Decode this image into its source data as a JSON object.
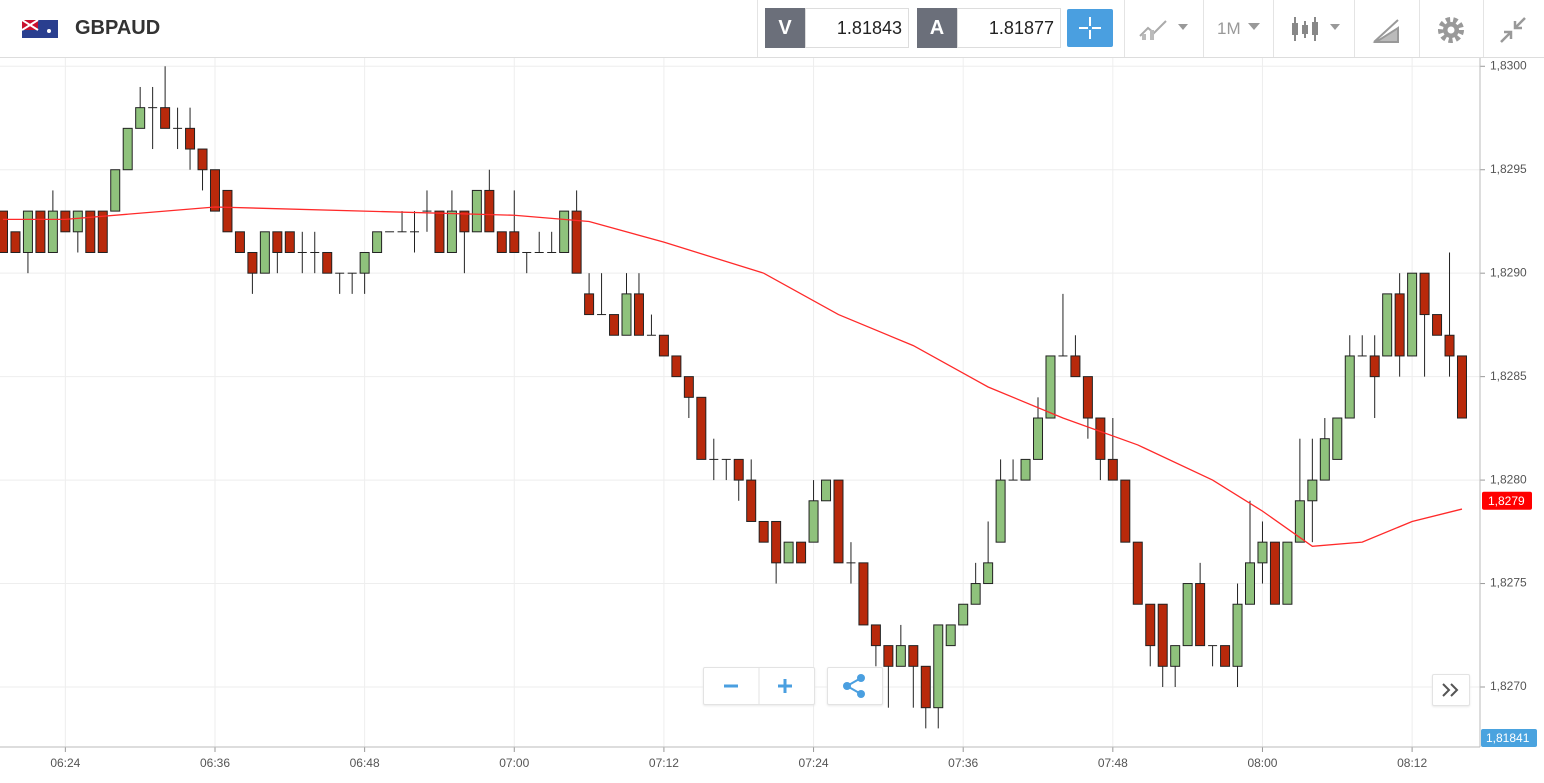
{
  "toolbar": {
    "symbol": "GBPAUD",
    "sell_label": "V",
    "sell_price": "1.81843",
    "buy_label": "A",
    "buy_price": "1.81877",
    "timeframe": "1M"
  },
  "chart_data": {
    "type": "candlestick",
    "categories": [
      null,
      null,
      null,
      null,
      null,
      "06:24",
      null,
      null,
      null,
      null,
      null,
      null,
      null,
      null,
      null,
      null,
      null,
      "06:36",
      null,
      null,
      null,
      null,
      null,
      null,
      null,
      null,
      null,
      null,
      null,
      "06:48",
      null,
      null,
      null,
      null,
      null,
      null,
      null,
      null,
      null,
      null,
      null,
      "07:00",
      null,
      null,
      null,
      null,
      null,
      null,
      null,
      null,
      null,
      null,
      null,
      "07:12",
      null,
      null,
      null,
      null,
      null,
      null,
      null,
      null,
      null,
      null,
      null,
      "07:24",
      null,
      null,
      null,
      null,
      null,
      null,
      null,
      null,
      null,
      null,
      null,
      "07:36",
      null,
      null,
      null,
      null,
      null,
      null,
      null,
      null,
      null,
      null,
      null,
      "07:48",
      null,
      null,
      null,
      null,
      null,
      null,
      null,
      null,
      null,
      null,
      null,
      "08:00",
      null,
      null,
      null,
      null,
      null,
      null,
      null,
      null,
      null,
      null,
      null,
      "08:12",
      null,
      null,
      null,
      null
    ],
    "candles": [
      {
        "o": 1.8293,
        "h": 1.8293,
        "l": 1.8291,
        "c": 1.8291
      },
      {
        "o": 1.8292,
        "h": 1.8292,
        "l": 1.8291,
        "c": 1.8291
      },
      {
        "o": 1.8291,
        "h": 1.8293,
        "l": 1.829,
        "c": 1.8293
      },
      {
        "o": 1.8293,
        "h": 1.8293,
        "l": 1.8291,
        "c": 1.8291
      },
      {
        "o": 1.8291,
        "h": 1.8294,
        "l": 1.8291,
        "c": 1.8293
      },
      {
        "o": 1.8293,
        "h": 1.8293,
        "l": 1.8292,
        "c": 1.8292
      },
      {
        "o": 1.8292,
        "h": 1.8293,
        "l": 1.8291,
        "c": 1.8293
      },
      {
        "o": 1.8293,
        "h": 1.8293,
        "l": 1.8291,
        "c": 1.8291
      },
      {
        "o": 1.8293,
        "h": 1.8293,
        "l": 1.8291,
        "c": 1.8291
      },
      {
        "o": 1.8293,
        "h": 1.8295,
        "l": 1.8293,
        "c": 1.8295
      },
      {
        "o": 1.8295,
        "h": 1.8297,
        "l": 1.8295,
        "c": 1.8297
      },
      {
        "o": 1.8297,
        "h": 1.8299,
        "l": 1.8297,
        "c": 1.8298
      },
      {
        "o": 1.8298,
        "h": 1.8299,
        "l": 1.8296,
        "c": 1.8298
      },
      {
        "o": 1.8298,
        "h": 1.83,
        "l": 1.8297,
        "c": 1.8297
      },
      {
        "o": 1.8297,
        "h": 1.8298,
        "l": 1.8296,
        "c": 1.8297
      },
      {
        "o": 1.8297,
        "h": 1.8298,
        "l": 1.8295,
        "c": 1.8296
      },
      {
        "o": 1.8296,
        "h": 1.8296,
        "l": 1.8294,
        "c": 1.8295
      },
      {
        "o": 1.8295,
        "h": 1.8295,
        "l": 1.8293,
        "c": 1.8293
      },
      {
        "o": 1.8294,
        "h": 1.8294,
        "l": 1.8292,
        "c": 1.8292
      },
      {
        "o": 1.8292,
        "h": 1.8292,
        "l": 1.8291,
        "c": 1.8291
      },
      {
        "o": 1.8291,
        "h": 1.8291,
        "l": 1.8289,
        "c": 1.829
      },
      {
        "o": 1.829,
        "h": 1.8292,
        "l": 1.829,
        "c": 1.8292
      },
      {
        "o": 1.8292,
        "h": 1.8292,
        "l": 1.829,
        "c": 1.8291
      },
      {
        "o": 1.8292,
        "h": 1.8292,
        "l": 1.8291,
        "c": 1.8291
      },
      {
        "o": 1.8291,
        "h": 1.8292,
        "l": 1.829,
        "c": 1.8291
      },
      {
        "o": 1.8291,
        "h": 1.8292,
        "l": 1.829,
        "c": 1.8291
      },
      {
        "o": 1.8291,
        "h": 1.8291,
        "l": 1.829,
        "c": 1.829
      },
      {
        "o": 1.829,
        "h": 1.829,
        "l": 1.8289,
        "c": 1.829
      },
      {
        "o": 1.829,
        "h": 1.829,
        "l": 1.8289,
        "c": 1.829
      },
      {
        "o": 1.829,
        "h": 1.8291,
        "l": 1.8289,
        "c": 1.8291
      },
      {
        "o": 1.8291,
        "h": 1.8292,
        "l": 1.8291,
        "c": 1.8292
      },
      {
        "o": 1.8292,
        "h": 1.8292,
        "l": 1.8292,
        "c": 1.8292
      },
      {
        "o": 1.8292,
        "h": 1.8293,
        "l": 1.8292,
        "c": 1.8292
      },
      {
        "o": 1.8292,
        "h": 1.8293,
        "l": 1.8291,
        "c": 1.8292
      },
      {
        "o": 1.8293,
        "h": 1.8294,
        "l": 1.8292,
        "c": 1.8293
      },
      {
        "o": 1.8293,
        "h": 1.8293,
        "l": 1.8291,
        "c": 1.8291
      },
      {
        "o": 1.8291,
        "h": 1.8294,
        "l": 1.8291,
        "c": 1.8293
      },
      {
        "o": 1.8293,
        "h": 1.8293,
        "l": 1.829,
        "c": 1.8292
      },
      {
        "o": 1.8292,
        "h": 1.8294,
        "l": 1.8292,
        "c": 1.8294
      },
      {
        "o": 1.8294,
        "h": 1.8295,
        "l": 1.8292,
        "c": 1.8292
      },
      {
        "o": 1.8292,
        "h": 1.8292,
        "l": 1.8291,
        "c": 1.8291
      },
      {
        "o": 1.8292,
        "h": 1.8294,
        "l": 1.8291,
        "c": 1.8291
      },
      {
        "o": 1.8291,
        "h": 1.8291,
        "l": 1.829,
        "c": 1.8291
      },
      {
        "o": 1.8291,
        "h": 1.8292,
        "l": 1.8291,
        "c": 1.8291
      },
      {
        "o": 1.8291,
        "h": 1.8292,
        "l": 1.8291,
        "c": 1.8291
      },
      {
        "o": 1.8291,
        "h": 1.8293,
        "l": 1.8291,
        "c": 1.8293
      },
      {
        "o": 1.8293,
        "h": 1.8294,
        "l": 1.829,
        "c": 1.829
      },
      {
        "o": 1.8289,
        "h": 1.829,
        "l": 1.8288,
        "c": 1.8288
      },
      {
        "o": 1.8288,
        "h": 1.829,
        "l": 1.8288,
        "c": 1.8288
      },
      {
        "o": 1.8288,
        "h": 1.8288,
        "l": 1.8287,
        "c": 1.8287
      },
      {
        "o": 1.8287,
        "h": 1.829,
        "l": 1.8287,
        "c": 1.8289
      },
      {
        "o": 1.8289,
        "h": 1.829,
        "l": 1.8287,
        "c": 1.8287
      },
      {
        "o": 1.8287,
        "h": 1.8288,
        "l": 1.8287,
        "c": 1.8287
      },
      {
        "o": 1.8287,
        "h": 1.8287,
        "l": 1.8286,
        "c": 1.8286
      },
      {
        "o": 1.8286,
        "h": 1.8286,
        "l": 1.8285,
        "c": 1.8285
      },
      {
        "o": 1.8285,
        "h": 1.8285,
        "l": 1.8283,
        "c": 1.8284
      },
      {
        "o": 1.8284,
        "h": 1.8284,
        "l": 1.8281,
        "c": 1.8281
      },
      {
        "o": 1.8281,
        "h": 1.8282,
        "l": 1.828,
        "c": 1.8281
      },
      {
        "o": 1.8281,
        "h": 1.8281,
        "l": 1.828,
        "c": 1.8281
      },
      {
        "o": 1.8281,
        "h": 1.8281,
        "l": 1.8279,
        "c": 1.828
      },
      {
        "o": 1.828,
        "h": 1.8281,
        "l": 1.8278,
        "c": 1.8278
      },
      {
        "o": 1.8278,
        "h": 1.8278,
        "l": 1.8277,
        "c": 1.8277
      },
      {
        "o": 1.8278,
        "h": 1.8278,
        "l": 1.8275,
        "c": 1.8276
      },
      {
        "o": 1.8276,
        "h": 1.8277,
        "l": 1.8276,
        "c": 1.8277
      },
      {
        "o": 1.8277,
        "h": 1.8277,
        "l": 1.8276,
        "c": 1.8276
      },
      {
        "o": 1.8277,
        "h": 1.828,
        "l": 1.8277,
        "c": 1.8279
      },
      {
        "o": 1.8279,
        "h": 1.828,
        "l": 1.8279,
        "c": 1.828
      },
      {
        "o": 1.828,
        "h": 1.828,
        "l": 1.8276,
        "c": 1.8276
      },
      {
        "o": 1.8276,
        "h": 1.8277,
        "l": 1.8275,
        "c": 1.8276
      },
      {
        "o": 1.8276,
        "h": 1.8276,
        "l": 1.8273,
        "c": 1.8273
      },
      {
        "o": 1.8273,
        "h": 1.8273,
        "l": 1.8271,
        "c": 1.8272
      },
      {
        "o": 1.8272,
        "h": 1.8272,
        "l": 1.8269,
        "c": 1.8271
      },
      {
        "o": 1.8271,
        "h": 1.8273,
        "l": 1.8271,
        "c": 1.8272
      },
      {
        "o": 1.8272,
        "h": 1.8272,
        "l": 1.8269,
        "c": 1.8271
      },
      {
        "o": 1.8271,
        "h": 1.8271,
        "l": 1.8268,
        "c": 1.8269
      },
      {
        "o": 1.8269,
        "h": 1.8273,
        "l": 1.8268,
        "c": 1.8273
      },
      {
        "o": 1.8272,
        "h": 1.8273,
        "l": 1.8272,
        "c": 1.8273
      },
      {
        "o": 1.8273,
        "h": 1.8274,
        "l": 1.8273,
        "c": 1.8274
      },
      {
        "o": 1.8274,
        "h": 1.8276,
        "l": 1.8274,
        "c": 1.8275
      },
      {
        "o": 1.8275,
        "h": 1.8278,
        "l": 1.8275,
        "c": 1.8276
      },
      {
        "o": 1.8277,
        "h": 1.8281,
        "l": 1.8277,
        "c": 1.828
      },
      {
        "o": 1.828,
        "h": 1.8281,
        "l": 1.828,
        "c": 1.828
      },
      {
        "o": 1.828,
        "h": 1.8281,
        "l": 1.828,
        "c": 1.8281
      },
      {
        "o": 1.8281,
        "h": 1.8284,
        "l": 1.8281,
        "c": 1.8283
      },
      {
        "o": 1.8283,
        "h": 1.8286,
        "l": 1.8283,
        "c": 1.8286
      },
      {
        "o": 1.8286,
        "h": 1.8289,
        "l": 1.8286,
        "c": 1.8286
      },
      {
        "o": 1.8286,
        "h": 1.8287,
        "l": 1.8285,
        "c": 1.8285
      },
      {
        "o": 1.8285,
        "h": 1.8285,
        "l": 1.8282,
        "c": 1.8283
      },
      {
        "o": 1.8283,
        "h": 1.8283,
        "l": 1.828,
        "c": 1.8281
      },
      {
        "o": 1.8281,
        "h": 1.8283,
        "l": 1.828,
        "c": 1.828
      },
      {
        "o": 1.828,
        "h": 1.828,
        "l": 1.8277,
        "c": 1.8277
      },
      {
        "o": 1.8277,
        "h": 1.8277,
        "l": 1.8274,
        "c": 1.8274
      },
      {
        "o": 1.8274,
        "h": 1.8274,
        "l": 1.8271,
        "c": 1.8272
      },
      {
        "o": 1.8274,
        "h": 1.8274,
        "l": 1.827,
        "c": 1.8271
      },
      {
        "o": 1.8271,
        "h": 1.8272,
        "l": 1.827,
        "c": 1.8272
      },
      {
        "o": 1.8272,
        "h": 1.8275,
        "l": 1.8272,
        "c": 1.8275
      },
      {
        "o": 1.8275,
        "h": 1.8276,
        "l": 1.8272,
        "c": 1.8272
      },
      {
        "o": 1.8272,
        "h": 1.8272,
        "l": 1.8271,
        "c": 1.8272
      },
      {
        "o": 1.8272,
        "h": 1.8272,
        "l": 1.8271,
        "c": 1.8271
      },
      {
        "o": 1.8271,
        "h": 1.8275,
        "l": 1.827,
        "c": 1.8274
      },
      {
        "o": 1.8274,
        "h": 1.8279,
        "l": 1.8274,
        "c": 1.8276
      },
      {
        "o": 1.8276,
        "h": 1.8278,
        "l": 1.8275,
        "c": 1.8277
      },
      {
        "o": 1.8277,
        "h": 1.8277,
        "l": 1.8274,
        "c": 1.8274
      },
      {
        "o": 1.8274,
        "h": 1.8277,
        "l": 1.8274,
        "c": 1.8277
      },
      {
        "o": 1.8277,
        "h": 1.8282,
        "l": 1.8277,
        "c": 1.8279
      },
      {
        "o": 1.8279,
        "h": 1.8282,
        "l": 1.8277,
        "c": 1.828
      },
      {
        "o": 1.828,
        "h": 1.8283,
        "l": 1.828,
        "c": 1.8282
      },
      {
        "o": 1.8281,
        "h": 1.8283,
        "l": 1.8281,
        "c": 1.8283
      },
      {
        "o": 1.8283,
        "h": 1.8287,
        "l": 1.8283,
        "c": 1.8286
      },
      {
        "o": 1.8286,
        "h": 1.8287,
        "l": 1.8286,
        "c": 1.8286
      },
      {
        "o": 1.8286,
        "h": 1.8287,
        "l": 1.8283,
        "c": 1.8285
      },
      {
        "o": 1.8286,
        "h": 1.8289,
        "l": 1.8286,
        "c": 1.8289
      },
      {
        "o": 1.8289,
        "h": 1.829,
        "l": 1.8285,
        "c": 1.8286
      },
      {
        "o": 1.8286,
        "h": 1.829,
        "l": 1.8286,
        "c": 1.829
      },
      {
        "o": 1.829,
        "h": 1.829,
        "l": 1.8285,
        "c": 1.8288
      },
      {
        "o": 1.8288,
        "h": 1.8288,
        "l": 1.8287,
        "c": 1.8287
      },
      {
        "o": 1.8287,
        "h": 1.8291,
        "l": 1.8285,
        "c": 1.8286
      },
      {
        "o": 1.8286,
        "h": 1.8286,
        "l": 1.8283,
        "c": 1.8283
      }
    ],
    "up_color": "#8fc27c",
    "down_color": "#b8290b",
    "moving_average": {
      "color": "#ff2a2a",
      "x": [
        0,
        5,
        17,
        41,
        47,
        53,
        61,
        67,
        73,
        79,
        85,
        91,
        97,
        101,
        105,
        109,
        113,
        117
      ],
      "values": [
        1.82926,
        1.82926,
        1.82932,
        1.82928,
        1.82925,
        1.82915,
        1.829,
        1.8288,
        1.82865,
        1.82845,
        1.8283,
        1.82817,
        1.828,
        1.82785,
        1.82768,
        1.8277,
        1.8278,
        1.82786
      ]
    },
    "last_price": {
      "value": 1.8279,
      "label": "1,8279"
    },
    "bid_label": "1,81841",
    "ylim": [
      1.82671,
      1.83004
    ],
    "yticks": [
      {
        "value": 1.827,
        "label": "1,8270"
      },
      {
        "value": 1.8275,
        "label": "1,8275"
      },
      {
        "value": 1.828,
        "label": "1,8280"
      },
      {
        "value": 1.8285,
        "label": "1,8285"
      },
      {
        "value": 1.829,
        "label": "1,8290"
      },
      {
        "value": 1.8295,
        "label": "1,8295"
      },
      {
        "value": 1.83,
        "label": "1,8300"
      }
    ],
    "grid": true
  }
}
